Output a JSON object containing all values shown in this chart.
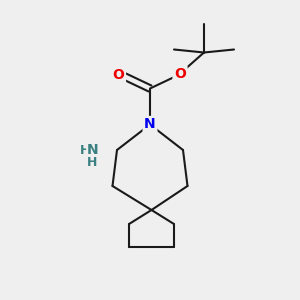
{
  "background_color": "#EFEFEF",
  "bond_color": "#1A1A1A",
  "atom_colors": {
    "N": "#0000EE",
    "O": "#EE0000",
    "NH2_N": "#3A8080",
    "NH2_H": "#3A8080"
  },
  "figsize": [
    3.0,
    3.0
  ],
  "dpi": 100,
  "xlim": [
    0,
    10
  ],
  "ylim": [
    0,
    10
  ]
}
